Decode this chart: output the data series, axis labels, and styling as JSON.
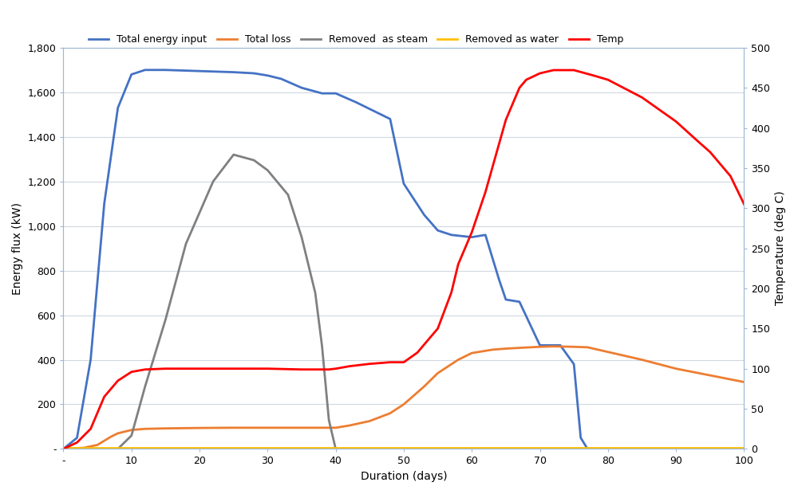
{
  "xlabel": "Duration (days)",
  "ylabel_left": "Energy flux (kW)",
  "ylabel_right": "Temperature (deg C)",
  "xlim": [
    0,
    100
  ],
  "ylim_left": [
    0,
    1800
  ],
  "ylim_right": [
    0,
    500
  ],
  "xticks": [
    0,
    10,
    20,
    30,
    40,
    50,
    60,
    70,
    80,
    90,
    100
  ],
  "xtick_labels": [
    "-",
    "10",
    "20",
    "30",
    "40",
    "50",
    "60",
    "70",
    "80",
    "90",
    "100"
  ],
  "yticks_left": [
    0,
    200,
    400,
    600,
    800,
    1000,
    1200,
    1400,
    1600,
    1800
  ],
  "ytick_labels_left": [
    "-",
    "200",
    "400",
    "600",
    "800",
    "1,000",
    "1,200",
    "1,400",
    "1,600",
    "1,800"
  ],
  "yticks_right": [
    0,
    50,
    100,
    150,
    200,
    250,
    300,
    350,
    400,
    450,
    500
  ],
  "background_color": "#ffffff",
  "plot_bg_color": "#ffffff",
  "grid_color": "#d0d8e0",
  "series": {
    "total_energy_input": {
      "label": "Total energy input",
      "color": "#4472c4",
      "linewidth": 2.0,
      "x": [
        0,
        2,
        4,
        6,
        8,
        10,
        12,
        15,
        20,
        25,
        28,
        30,
        32,
        35,
        38,
        40,
        43,
        46,
        48,
        50,
        53,
        55,
        57,
        60,
        62,
        64,
        65,
        67,
        70,
        73,
        75,
        76,
        77,
        100
      ],
      "y": [
        0,
        50,
        400,
        1100,
        1530,
        1680,
        1700,
        1700,
        1695,
        1690,
        1685,
        1675,
        1660,
        1620,
        1595,
        1595,
        1555,
        1510,
        1480,
        1190,
        1050,
        980,
        960,
        950,
        960,
        760,
        670,
        660,
        465,
        465,
        380,
        50,
        0,
        0
      ]
    },
    "total_loss": {
      "label": "Total loss",
      "color": "#ed7d31",
      "linewidth": 2.0,
      "x": [
        0,
        3,
        5,
        7,
        8,
        10,
        12,
        15,
        20,
        25,
        30,
        35,
        38,
        40,
        42,
        45,
        48,
        50,
        53,
        55,
        58,
        60,
        63,
        65,
        68,
        70,
        72,
        75,
        77,
        80,
        85,
        90,
        95,
        100
      ],
      "y": [
        0,
        5,
        18,
        55,
        70,
        85,
        90,
        92,
        94,
        95,
        95,
        95,
        95,
        95,
        105,
        125,
        160,
        200,
        280,
        340,
        400,
        430,
        445,
        450,
        455,
        458,
        460,
        458,
        456,
        435,
        400,
        360,
        330,
        300
      ]
    },
    "removed_as_steam": {
      "label": "Removed  as steam",
      "color": "#808080",
      "linewidth": 2.0,
      "x": [
        0,
        5,
        8,
        10,
        12,
        15,
        18,
        20,
        22,
        25,
        28,
        30,
        33,
        35,
        37,
        38,
        39,
        40
      ],
      "y": [
        0,
        0,
        0,
        60,
        280,
        580,
        920,
        1060,
        1200,
        1320,
        1295,
        1250,
        1140,
        950,
        700,
        460,
        130,
        0
      ]
    },
    "removed_as_water": {
      "label": "Removed as water",
      "color": "#ffc000",
      "linewidth": 2.0,
      "x": [
        0,
        100
      ],
      "y": [
        5,
        5
      ]
    },
    "temp": {
      "label": "Temp",
      "color": "#ff0000",
      "linewidth": 2.0,
      "x": [
        0,
        2,
        4,
        6,
        8,
        10,
        12,
        15,
        20,
        25,
        30,
        35,
        38,
        39,
        40,
        42,
        45,
        48,
        50,
        52,
        55,
        57,
        58,
        60,
        62,
        64,
        65,
        67,
        68,
        70,
        72,
        74,
        75,
        78,
        80,
        85,
        88,
        90,
        93,
        95,
        98,
        100
      ],
      "y": [
        0,
        8,
        25,
        65,
        85,
        96,
        99,
        100,
        100,
        100,
        100,
        99,
        99,
        99,
        100,
        103,
        106,
        108,
        108,
        120,
        150,
        195,
        230,
        270,
        320,
        380,
        410,
        450,
        460,
        468,
        472,
        472,
        472,
        465,
        460,
        438,
        420,
        408,
        385,
        370,
        340,
        305
      ]
    }
  }
}
